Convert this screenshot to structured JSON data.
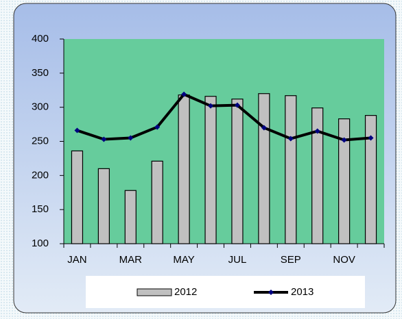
{
  "chart_data": {
    "type": "bar",
    "categories": [
      "JAN",
      null,
      "MAR",
      null,
      "MAY",
      null,
      "JUL",
      null,
      "SEP",
      null,
      "NOV",
      null
    ],
    "series": [
      {
        "name": "2012",
        "type": "bar",
        "color": "#c0c0c0",
        "values": [
          236,
          210,
          178,
          221,
          318,
          316,
          312,
          320,
          317,
          299,
          283,
          288
        ]
      },
      {
        "name": "2013",
        "type": "line",
        "color": "#000000",
        "marker_color": "#000080",
        "values": [
          266,
          253,
          255,
          271,
          319,
          302,
          303,
          270,
          254,
          265,
          252,
          255
        ]
      }
    ],
    "ylim": [
      100,
      400
    ],
    "yticks": [
      100,
      150,
      200,
      250,
      300,
      350,
      400
    ],
    "plot_color": "#66cc9c",
    "legend": "bottom"
  }
}
